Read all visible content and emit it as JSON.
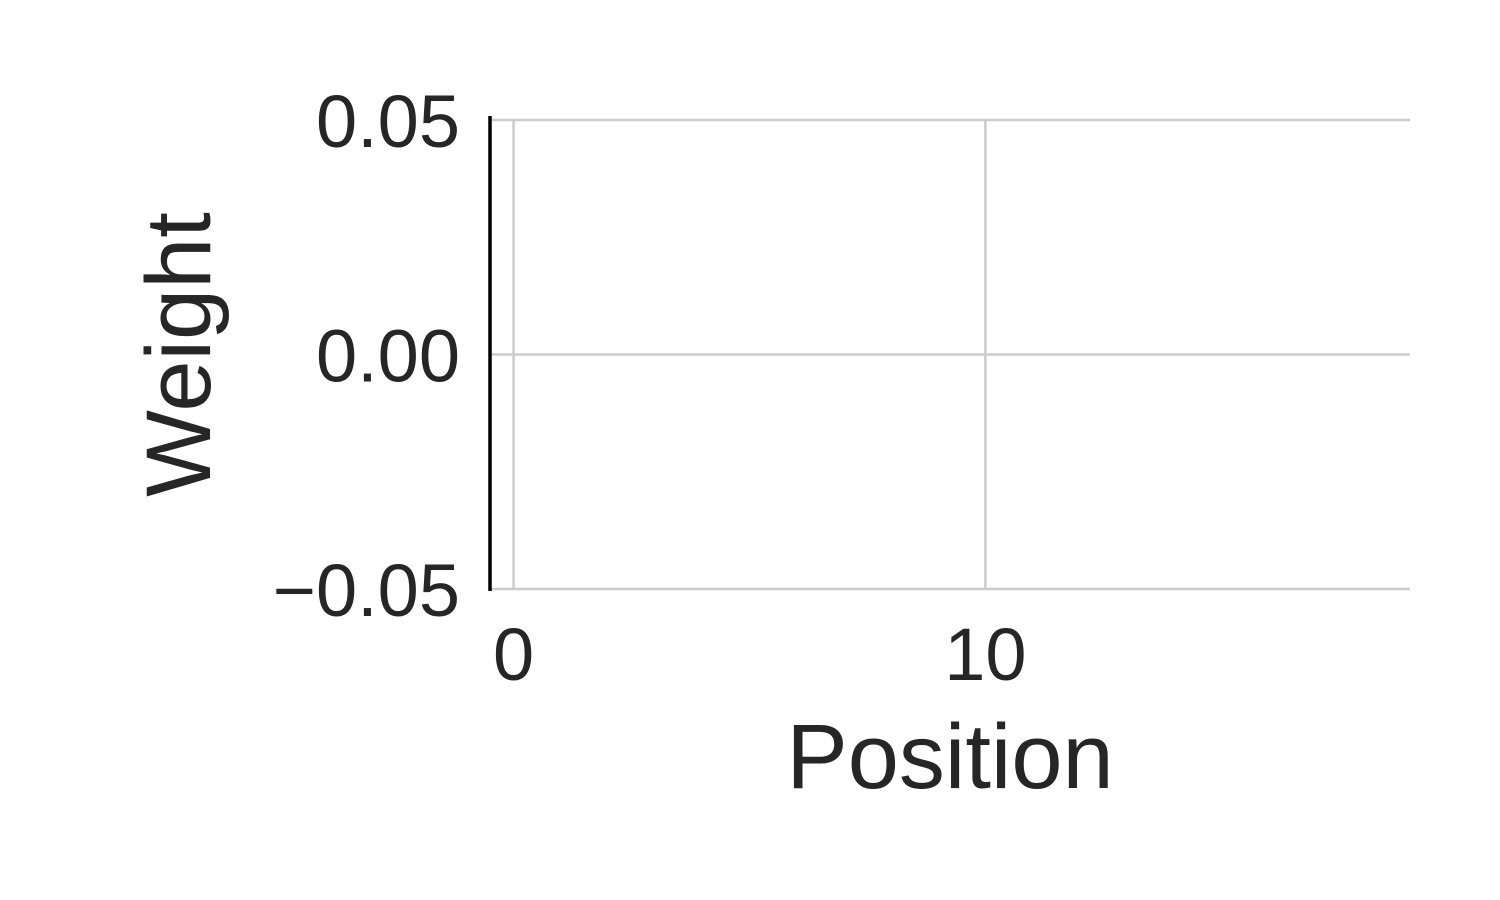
{
  "chart_data": {
    "type": "line",
    "title": "",
    "xlabel": "Position",
    "ylabel": "Weight",
    "xlim": [
      -0.5,
      19
    ],
    "ylim": [
      -0.05,
      0.05
    ],
    "xticks": [
      0,
      10
    ],
    "xtick_labels": [
      "0",
      "10"
    ],
    "yticks": [
      0.05,
      0.0,
      -0.05
    ],
    "ytick_labels": [
      "0.05",
      "0.00",
      "−0.05"
    ],
    "grid": true,
    "series": []
  }
}
